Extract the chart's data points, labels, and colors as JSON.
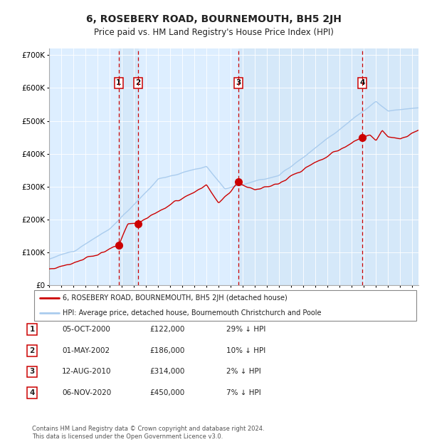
{
  "title": "6, ROSEBERY ROAD, BOURNEMOUTH, BH5 2JH",
  "subtitle": "Price paid vs. HM Land Registry's House Price Index (HPI)",
  "title_fontsize": 10,
  "subtitle_fontsize": 8.5,
  "background_color": "#ffffff",
  "plot_bg_color": "#ddeeff",
  "hpi_color": "#aaccee",
  "price_color": "#cc0000",
  "sale_marker_color": "#cc0000",
  "dashed_line_color": "#cc0000",
  "legend_line1": "6, ROSEBERY ROAD, BOURNEMOUTH, BH5 2JH (detached house)",
  "legend_line2": "HPI: Average price, detached house, Bournemouth Christchurch and Poole",
  "footer": "Contains HM Land Registry data © Crown copyright and database right 2024.\nThis data is licensed under the Open Government Licence v3.0.",
  "sales": [
    {
      "num": 1,
      "date_label": "05-OCT-2000",
      "price": 122000,
      "pct": "29%",
      "year": 2000.75
    },
    {
      "num": 2,
      "date_label": "01-MAY-2002",
      "price": 186000,
      "pct": "10%",
      "year": 2002.33
    },
    {
      "num": 3,
      "date_label": "12-AUG-2010",
      "price": 314000,
      "pct": "2%",
      "year": 2010.62
    },
    {
      "num": 4,
      "date_label": "06-NOV-2020",
      "price": 450000,
      "pct": "7%",
      "year": 2020.85
    }
  ],
  "ylim": [
    0,
    720000
  ],
  "yticks": [
    0,
    100000,
    200000,
    300000,
    400000,
    500000,
    600000,
    700000
  ],
  "ytick_labels": [
    "£0",
    "£100K",
    "£200K",
    "£300K",
    "£400K",
    "£500K",
    "£600K",
    "£700K"
  ],
  "xmin": 1995,
  "xmax": 2025.5
}
